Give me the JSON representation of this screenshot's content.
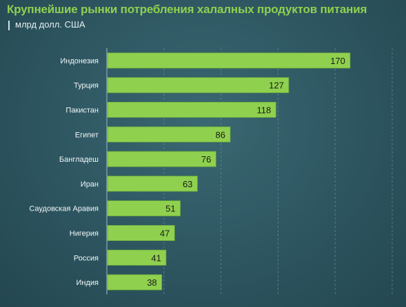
{
  "header": {
    "title": "Крупнейшие рынки потребления халалных продуктов питания",
    "subtitle": "млрд долл. США"
  },
  "colors": {
    "background": "#2f5660",
    "bar": "#8fd14f",
    "title": "#8fd14f",
    "gridline": "#6d9aa3"
  },
  "chart_data": {
    "type": "bar",
    "orientation": "horizontal",
    "title": "Крупнейшие рынки потребления халалных продуктов питания",
    "subtitle": "млрд долл. США",
    "categories": [
      "Индонезия",
      "Турция",
      "Пакистан",
      "Египет",
      "Бангладеш",
      "Иран",
      "Саудовская Аравия",
      "Нигерия",
      "Россия",
      "Индия"
    ],
    "values": [
      170,
      127,
      118,
      86,
      76,
      63,
      51,
      47,
      41,
      38
    ],
    "data_labels": [
      "170",
      "127",
      "118",
      "86",
      "76",
      "63",
      "51",
      "47",
      "41",
      "38"
    ],
    "xlim": [
      0,
      200
    ],
    "grid": true,
    "legend": "none"
  }
}
